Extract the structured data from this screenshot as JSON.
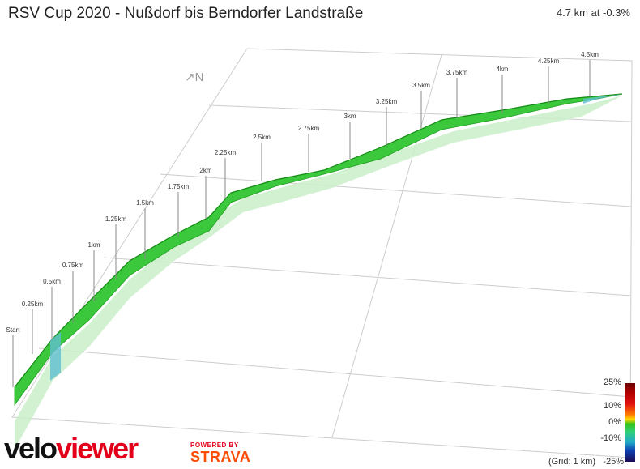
{
  "header": {
    "title": "RSV Cup 2020 - Nußdorf bis Berndorfer Landstraße",
    "stats": "4.7 km at -0.3%"
  },
  "compass": {
    "icon": "north-arrow-icon",
    "label": "↗N"
  },
  "markers": [
    "Start",
    "0.25km",
    "0.5km",
    "0.75km",
    "1km",
    "1.25km",
    "1.5km",
    "1.75km",
    "2km",
    "2.25km",
    "2.5km",
    "2.75km",
    "3km",
    "3.25km",
    "3.5km",
    "3.75km",
    "4km",
    "4.25km",
    "4.5km"
  ],
  "scale": {
    "labels": [
      "25%",
      "10%",
      "0%",
      "-10%",
      "-25%"
    ],
    "grid_note": "(Grid: 1 km)"
  },
  "branding": {
    "logo_part1": "velo",
    "logo_part2": "viewer",
    "powered_by": "POWERED BY",
    "strava": "STRAVA"
  },
  "colors": {
    "route_main": "#3cc83c",
    "route_dark": "#1e9e1e",
    "route_shadow": "#c9efc9",
    "grid": "#cccccc",
    "brand_red": "#e3001b",
    "strava_orange": "#fc4c02"
  }
}
